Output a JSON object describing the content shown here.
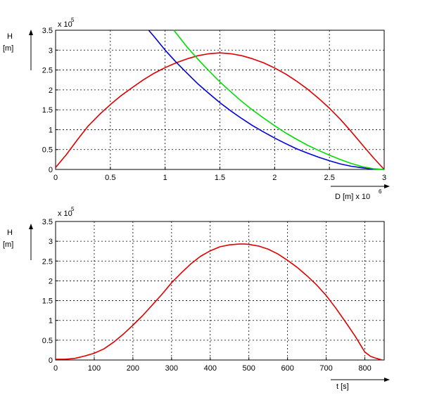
{
  "chart_data": [
    {
      "type": "line",
      "ylabel": "H",
      "yunit": "[m]",
      "y_multiplier": "x 10",
      "y_exponent": "5",
      "xlabel": "D [m] x 10",
      "x_exponent": "6",
      "xlim": [
        0,
        3
      ],
      "ylim": [
        0,
        3.5
      ],
      "x_ticks": [
        "0",
        "0.5",
        "1",
        "1.5",
        "2",
        "2.5",
        "3"
      ],
      "y_ticks": [
        "0",
        "0.5",
        "1",
        "1.5",
        "2",
        "2.5",
        "3",
        "3.5"
      ],
      "grid": true,
      "series": [
        {
          "color": "#e00000",
          "x": [
            0,
            0.1,
            0.2,
            0.3,
            0.4,
            0.5,
            0.6,
            0.7,
            0.8,
            0.9,
            1.0,
            1.1,
            1.2,
            1.3,
            1.4,
            1.5,
            1.6,
            1.7,
            1.8,
            1.9,
            2.0,
            2.1,
            2.2,
            2.3,
            2.4,
            2.5,
            2.6,
            2.7,
            2.8,
            2.9,
            3.0
          ],
          "y": [
            0.05,
            0.38,
            0.75,
            1.1,
            1.38,
            1.63,
            1.86,
            2.06,
            2.25,
            2.42,
            2.56,
            2.68,
            2.78,
            2.86,
            2.91,
            2.93,
            2.91,
            2.86,
            2.78,
            2.68,
            2.55,
            2.4,
            2.22,
            2.02,
            1.79,
            1.54,
            1.26,
            0.95,
            0.62,
            0.3,
            0.0
          ]
        },
        {
          "color": "#0000dd",
          "x": [
            0.85,
            0.9,
            1.0,
            1.1,
            1.2,
            1.3,
            1.4,
            1.5,
            1.6,
            1.7,
            1.8,
            1.9,
            2.0,
            2.1,
            2.2,
            2.3,
            2.4,
            2.5,
            2.6,
            2.7,
            2.8,
            2.9,
            3.0
          ],
          "y": [
            3.5,
            3.34,
            3.0,
            2.7,
            2.42,
            2.15,
            1.91,
            1.68,
            1.47,
            1.28,
            1.1,
            0.94,
            0.79,
            0.65,
            0.52,
            0.41,
            0.31,
            0.22,
            0.14,
            0.08,
            0.04,
            0.01,
            0.0
          ]
        },
        {
          "color": "#00dd00",
          "x": [
            1.08,
            1.1,
            1.2,
            1.3,
            1.4,
            1.5,
            1.6,
            1.7,
            1.8,
            1.9,
            2.0,
            2.1,
            2.2,
            2.3,
            2.4,
            2.5,
            2.6,
            2.7,
            2.8,
            2.9,
            3.0
          ],
          "y": [
            3.5,
            3.43,
            3.08,
            2.77,
            2.48,
            2.2,
            1.95,
            1.71,
            1.49,
            1.29,
            1.1,
            0.92,
            0.76,
            0.61,
            0.48,
            0.36,
            0.25,
            0.15,
            0.07,
            0.02,
            0.0
          ]
        }
      ]
    },
    {
      "type": "line",
      "ylabel": "H",
      "yunit": "[m]",
      "y_multiplier": "x 10",
      "y_exponent": "5",
      "xlabel": "t [s]",
      "xlim": [
        0,
        850
      ],
      "ylim": [
        0,
        3.5
      ],
      "x_ticks": [
        "0",
        "100",
        "200",
        "300",
        "400",
        "500",
        "600",
        "700",
        "800"
      ],
      "y_ticks": [
        "0",
        "0.5",
        "1",
        "1.5",
        "2",
        "2.5",
        "3",
        "3.5"
      ],
      "grid": true,
      "series": [
        {
          "color": "#e00000",
          "x": [
            0,
            25,
            50,
            75,
            100,
            125,
            150,
            175,
            200,
            225,
            250,
            275,
            300,
            325,
            350,
            375,
            400,
            425,
            450,
            475,
            490,
            500,
            525,
            550,
            575,
            600,
            625,
            650,
            675,
            700,
            725,
            750,
            775,
            800,
            815,
            830,
            845
          ],
          "y": [
            0.02,
            0.02,
            0.04,
            0.1,
            0.17,
            0.28,
            0.45,
            0.65,
            0.88,
            1.12,
            1.39,
            1.66,
            1.95,
            2.2,
            2.43,
            2.62,
            2.76,
            2.86,
            2.91,
            2.93,
            2.93,
            2.92,
            2.88,
            2.8,
            2.68,
            2.52,
            2.34,
            2.13,
            1.9,
            1.63,
            1.31,
            0.96,
            0.6,
            0.2,
            0.09,
            0.04,
            0.0
          ]
        }
      ]
    }
  ]
}
